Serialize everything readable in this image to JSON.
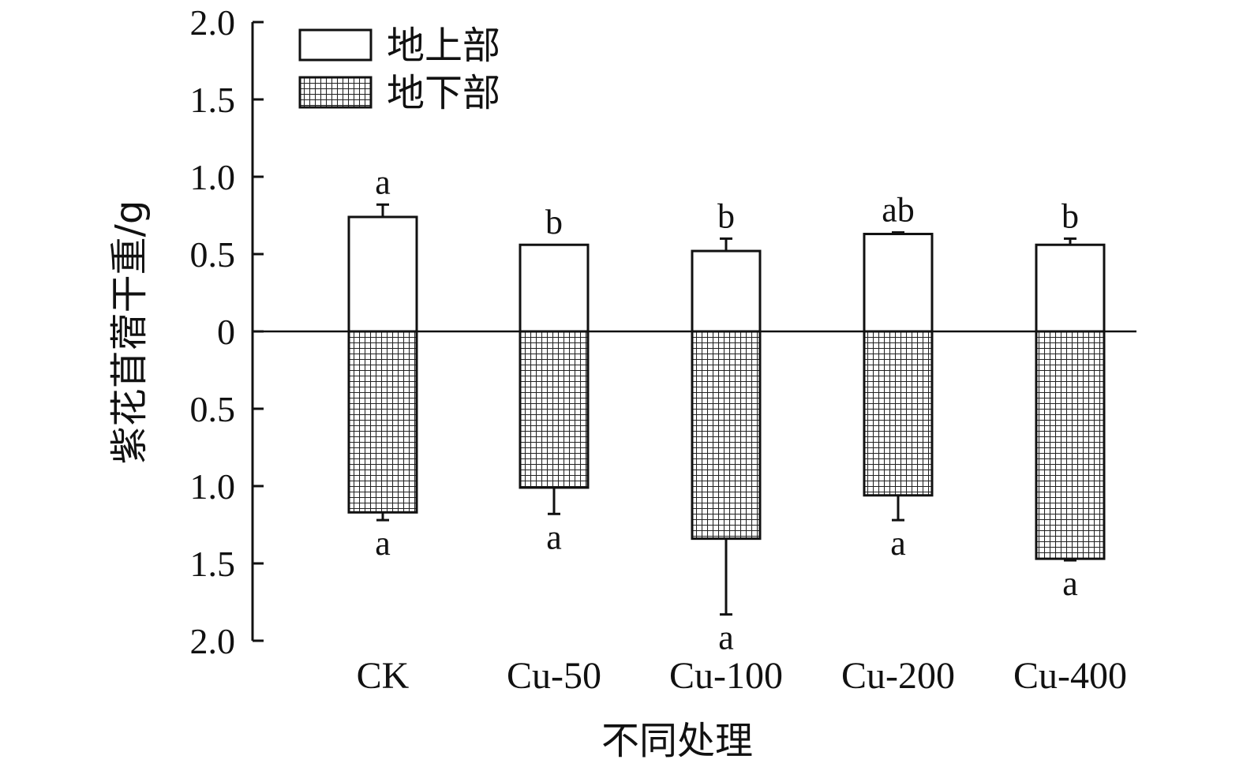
{
  "chart_data": {
    "type": "bar",
    "xlabel": "不同处理",
    "ylabel": "紫花苜蓿干重/g",
    "categories": [
      "CK",
      "Cu-50",
      "Cu-100",
      "Cu-200",
      "Cu-400"
    ],
    "y_range": [
      -2.0,
      2.0
    ],
    "y_ticks": [
      2.0,
      1.5,
      1.0,
      0.5,
      0,
      -0.5,
      -1.0,
      -1.5,
      -2.0
    ],
    "y_tick_labels": [
      "2.0",
      "1.5",
      "1.0",
      "0.5",
      "0",
      "0.5",
      "1.0",
      "1.5",
      "2.0"
    ],
    "legend_position": "top-left",
    "grid": false,
    "series": [
      {
        "name": "地上部",
        "direction": "up",
        "fill": "white",
        "values": [
          0.74,
          0.56,
          0.52,
          0.63,
          0.56
        ],
        "errors": [
          0.08,
          0.0,
          0.08,
          0.01,
          0.04
        ],
        "significance": [
          "a",
          "b",
          "b",
          "ab",
          "b"
        ]
      },
      {
        "name": "地下部",
        "direction": "down",
        "fill": "crosshatch",
        "values": [
          1.17,
          1.01,
          1.34,
          1.06,
          1.47
        ],
        "errors": [
          0.05,
          0.17,
          0.49,
          0.16,
          0.01
        ],
        "significance": [
          "a",
          "a",
          "a",
          "a",
          "a"
        ]
      }
    ]
  }
}
